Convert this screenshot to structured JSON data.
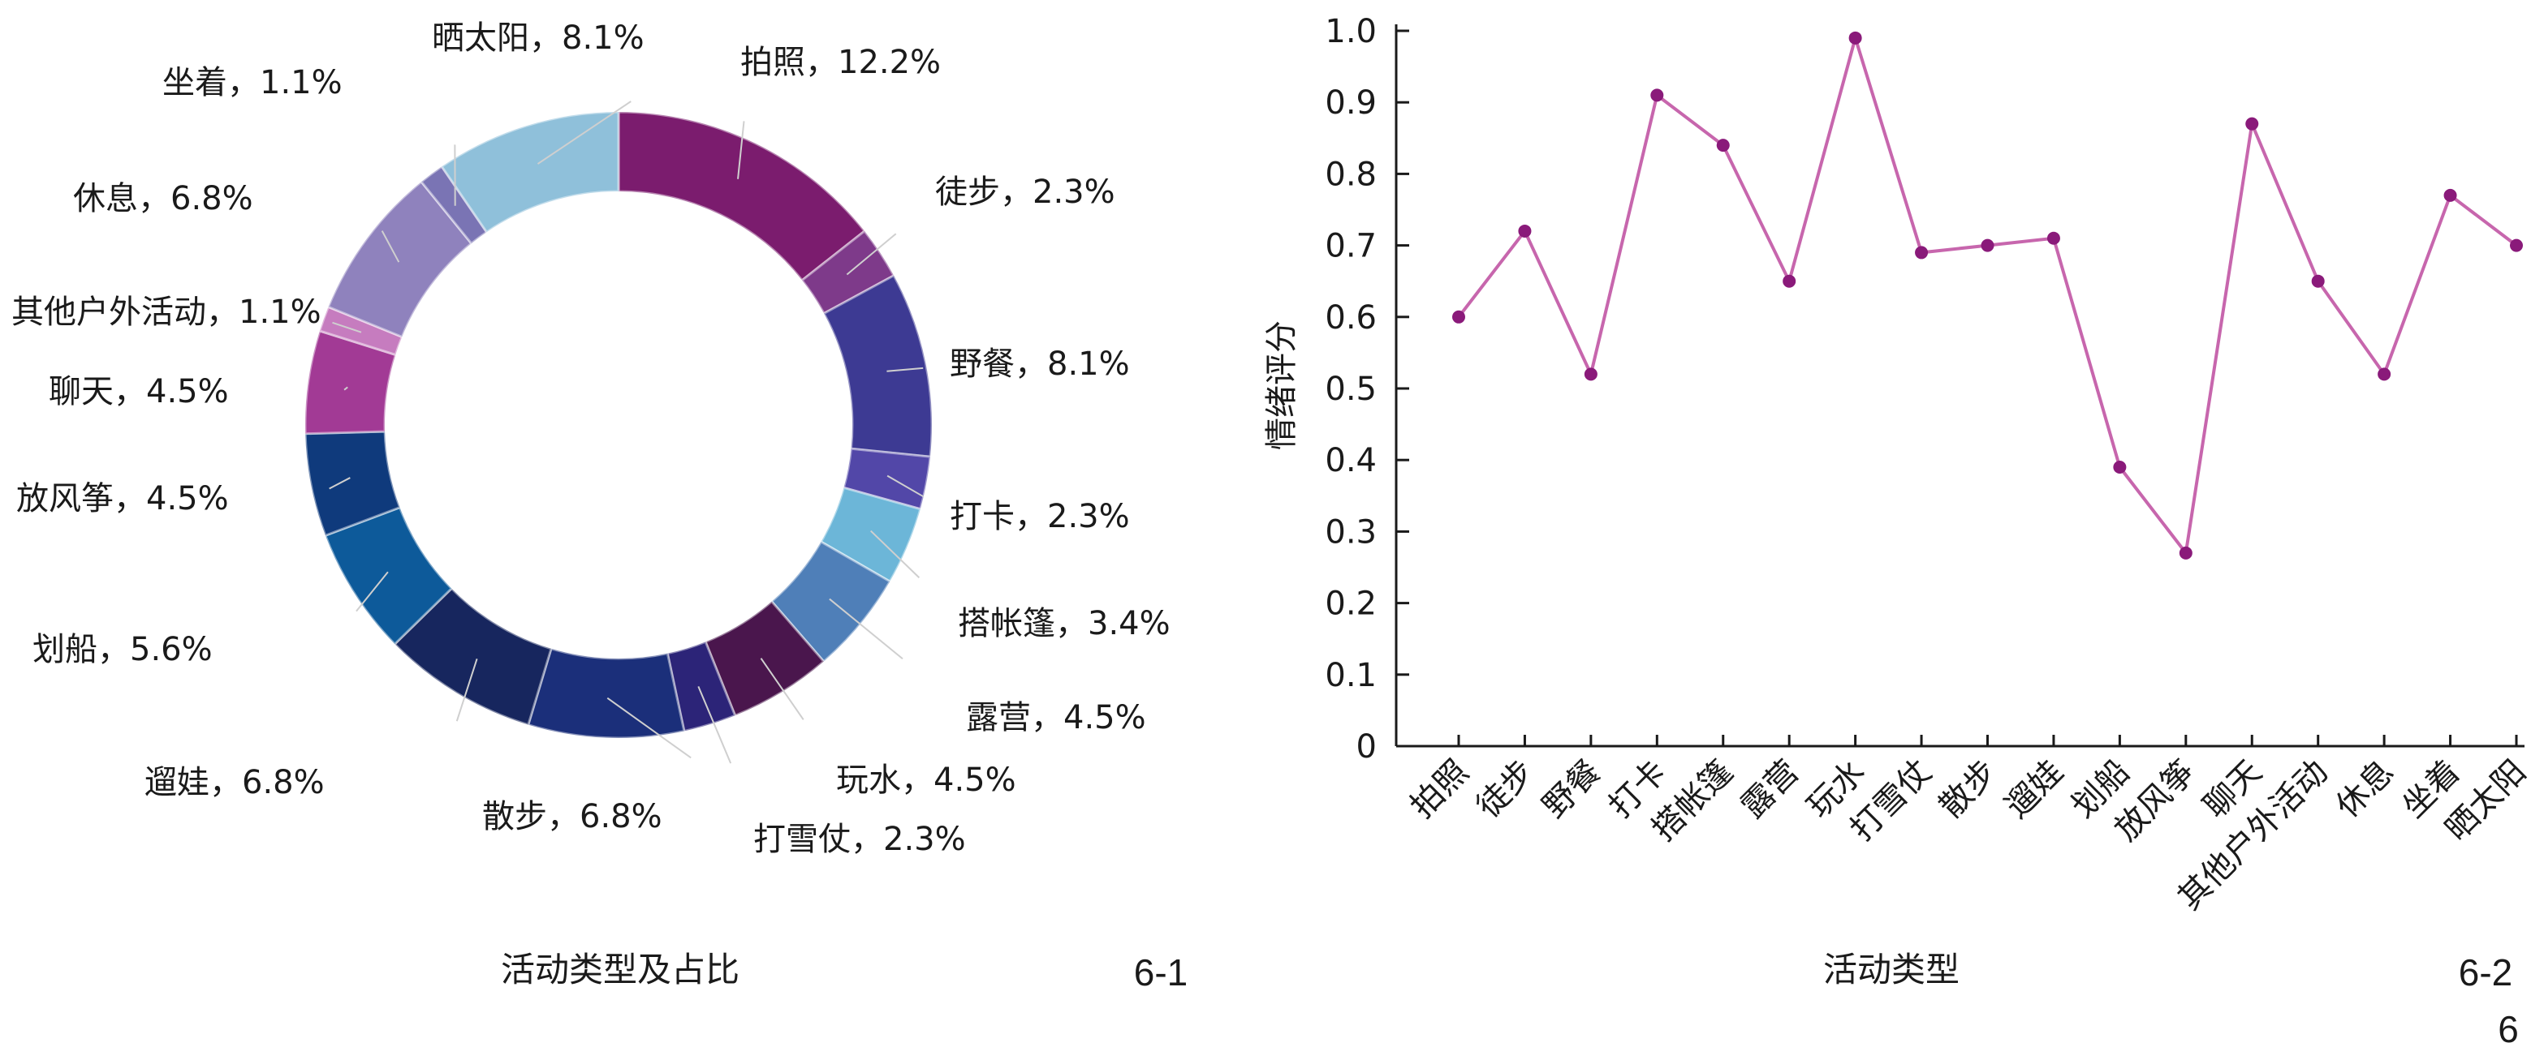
{
  "figure_labels": {
    "left": "6-1",
    "right": "6-2",
    "extra": "6"
  },
  "chart_data": [
    {
      "type": "pie",
      "donut": true,
      "title": "",
      "xlabel": "活动类型及占比",
      "slices": [
        {
          "name": "拍照",
          "value": 12.2,
          "label": "拍照，12.2%",
          "color": "#7b1c6e"
        },
        {
          "name": "徒步",
          "value": 2.3,
          "label": "徒步，2.3%",
          "color": "#7e3a8a"
        },
        {
          "name": "野餐",
          "value": 8.1,
          "label": "野餐，8.1%",
          "color": "#3d3a93"
        },
        {
          "name": "打卡",
          "value": 2.3,
          "label": "打卡，2.3%",
          "color": "#5247a8"
        },
        {
          "name": "搭帐篷",
          "value": 3.4,
          "label": "搭帐篷，3.4%",
          "color": "#6cb6d8"
        },
        {
          "name": "露营",
          "value": 4.5,
          "label": "露营，4.5%",
          "color": "#4f7fb8"
        },
        {
          "name": "玩水",
          "value": 4.5,
          "label": "玩水，4.5%",
          "color": "#4a164d"
        },
        {
          "name": "打雪仗",
          "value": 2.3,
          "label": "打雪仗，2.3%",
          "color": "#2c2478"
        },
        {
          "name": "散步",
          "value": 6.8,
          "label": "散步，6.8%",
          "color": "#1b2f7a"
        },
        {
          "name": "遛娃",
          "value": 6.8,
          "label": "遛娃，6.8%",
          "color": "#17265e"
        },
        {
          "name": "划船",
          "value": 5.6,
          "label": "划船，5.6%",
          "color": "#0d5a9a"
        },
        {
          "name": "放风筝",
          "value": 4.5,
          "label": "放风筝，4.5%",
          "color": "#0f3a7c"
        },
        {
          "name": "聊天",
          "value": 4.5,
          "label": "聊天，4.5%",
          "color": "#a23a95"
        },
        {
          "name": "其他户外活动",
          "value": 1.1,
          "label": "其他户外活动，1.1%",
          "color": "#c67cbf"
        },
        {
          "name": "休息",
          "value": 6.8,
          "label": "休息，6.8%",
          "color": "#8f82bd"
        },
        {
          "name": "坐着",
          "value": 1.1,
          "label": "坐着，1.1%",
          "color": "#7a74b4"
        },
        {
          "name": "晒太阳",
          "value": 8.1,
          "label": "晒太阳，8.1%",
          "color": "#8fc0da"
        }
      ]
    },
    {
      "type": "line",
      "title": "",
      "xlabel": "活动类型",
      "ylabel": "情绪评分",
      "ylim": [
        0,
        1.0
      ],
      "yticks": [
        "0",
        "0.1",
        "0.2",
        "0.3",
        "0.4",
        "0.5",
        "0.6",
        "0.7",
        "0.8",
        "0.9",
        "1.0"
      ],
      "color": "#c766ad",
      "categories": [
        "拍照",
        "徒步",
        "野餐",
        "打卡",
        "搭帐篷",
        "露营",
        "玩水",
        "打雪仗",
        "散步",
        "遛娃",
        "划船",
        "放风筝",
        "聊天",
        "其他户外活动",
        "休息",
        "坐着",
        "晒太阳"
      ],
      "values": [
        0.6,
        0.72,
        0.52,
        0.91,
        0.84,
        0.65,
        0.99,
        0.69,
        0.7,
        0.71,
        0.39,
        0.27,
        0.87,
        0.65,
        0.52,
        0.77,
        0.7
      ]
    }
  ]
}
